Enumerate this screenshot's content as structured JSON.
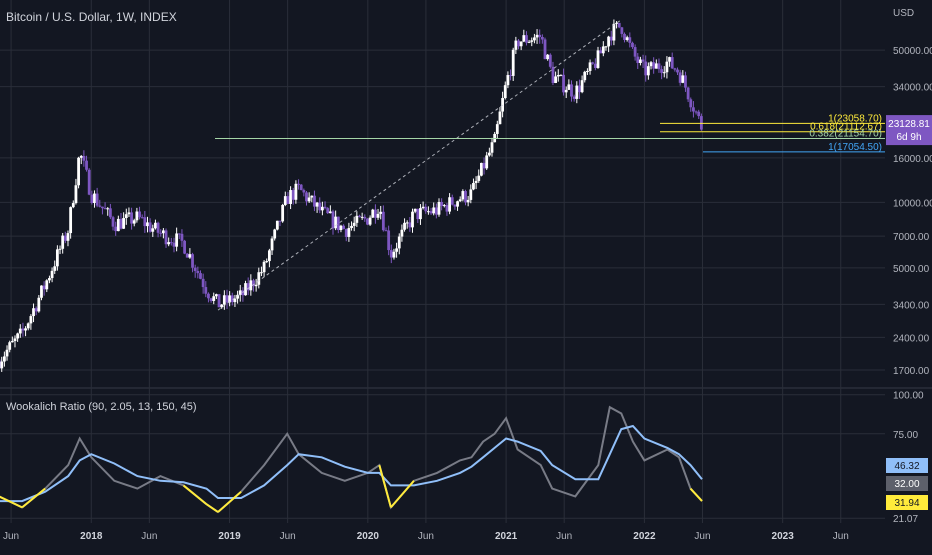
{
  "header": {
    "title": "Bitcoin / U.S. Dollar, 1W, INDEX",
    "currency": "USD"
  },
  "price_label": {
    "value": "23128.81",
    "countdown": "6d 9h"
  },
  "indicator": {
    "title": "Wookalich Ratio (90, 2.05, 13, 150, 45)",
    "labels": [
      {
        "text": "46.32",
        "bg": "#90bff9",
        "fg": "#131722"
      },
      {
        "text": "32.00",
        "bg": "#5d606b",
        "fg": "#ffffff"
      },
      {
        "text": "31.94",
        "bg": "#ffeb3b",
        "fg": "#131722"
      }
    ]
  },
  "colors": {
    "background": "#131722",
    "grid": "#2a2e39",
    "candle": "#ffffff",
    "candle_alt": "#7e57c2",
    "ratio_line": "#787b86",
    "signal_line": "#90bff9",
    "low_zone": "#ffeb3b",
    "fib_line_yellow": "#ffeb3b",
    "fib_line_green": "#a5d6a7",
    "fib_line_blue": "#42a5f5",
    "price_tag": "#7e57c2"
  },
  "chart_data": [
    {
      "type": "candlestick",
      "title": "Bitcoin / U.S. Dollar, 1W, INDEX",
      "y_scale": "log",
      "y_ticks": [
        "50000.00",
        "34000.00",
        "16000.00",
        "10000.00",
        "7000.00",
        "5000.00",
        "3400.00",
        "2400.00",
        "1700.00"
      ],
      "x_ticks": [
        "Jun",
        "2018",
        "Jun",
        "2019",
        "Jun",
        "2020",
        "Jun",
        "2021",
        "Jun",
        "2022",
        "Jun",
        "2023",
        "Jun"
      ],
      "price_series": {
        "dates": [
          "2017-05",
          "2017-07",
          "2017-09",
          "2017-11",
          "2017-12",
          "2018-01",
          "2018-03",
          "2018-05",
          "2018-07",
          "2018-09",
          "2018-11",
          "2018-12",
          "2019-02",
          "2019-04",
          "2019-06",
          "2019-07",
          "2019-09",
          "2019-11",
          "2020-01",
          "2020-02",
          "2020-03",
          "2020-05",
          "2020-07",
          "2020-09",
          "2020-10",
          "2020-11",
          "2020-12",
          "2021-01",
          "2021-02",
          "2021-04",
          "2021-05",
          "2021-07",
          "2021-09",
          "2021-10",
          "2021-11",
          "2021-12",
          "2022-01",
          "2022-03",
          "2022-04",
          "2022-05",
          "2022-06"
        ],
        "values": [
          1900,
          2500,
          4200,
          7500,
          17000,
          11000,
          8000,
          8500,
          7200,
          6500,
          4000,
          3400,
          3700,
          5000,
          10500,
          11500,
          9000,
          7500,
          8500,
          9800,
          5800,
          8800,
          9200,
          10500,
          11000,
          14500,
          19000,
          35000,
          55000,
          58000,
          38000,
          32000,
          46000,
          60000,
          65000,
          48000,
          40000,
          44000,
          40000,
          30000,
          22000
        ]
      },
      "fib_levels": [
        {
          "label": "1(23058.70)",
          "value": 23058.7
        },
        {
          "label": "0.618(21112.67)",
          "value": 21112.67
        },
        {
          "label": "0.382(21154.70)",
          "value": 21154.7
        },
        {
          "label": "1(17054.50)",
          "value": 17054.5
        }
      ],
      "last_price": 23128.81
    },
    {
      "type": "line",
      "title": "Wookalich Ratio (90, 2.05, 13, 150, 45)",
      "y_ticks": [
        "100.00",
        "75.00",
        "21.07"
      ],
      "series": [
        {
          "values": [
            35,
            28,
            40,
            55,
            72,
            60,
            45,
            40,
            48,
            42,
            30,
            25,
            38,
            55,
            75,
            62,
            50,
            45,
            50,
            55,
            28,
            45,
            50,
            58,
            60,
            70,
            75,
            85,
            65,
            55,
            40,
            35,
            55,
            92,
            88,
            70,
            58,
            65,
            60,
            40,
            32
          ]
        },
        {
          "values": [
            32,
            32,
            38,
            48,
            58,
            62,
            56,
            48,
            45,
            44,
            40,
            34,
            34,
            42,
            55,
            62,
            60,
            54,
            50,
            50,
            42,
            42,
            45,
            50,
            54,
            60,
            66,
            72,
            70,
            64,
            55,
            46,
            46,
            62,
            78,
            80,
            72,
            66,
            62,
            55,
            46
          ]
        }
      ]
    }
  ]
}
